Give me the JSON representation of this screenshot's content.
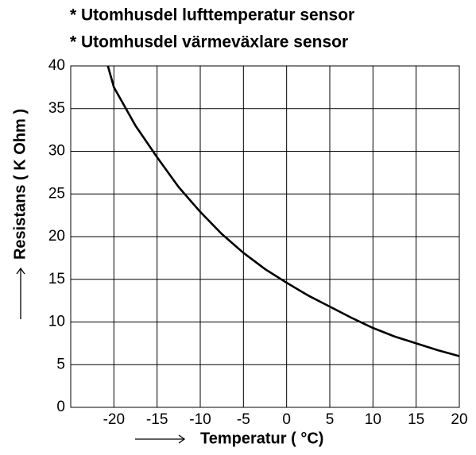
{
  "chart_data": {
    "type": "line",
    "title": "* Utomhusdel lufttemperatur sensor",
    "subtitle": "* Utomhusdel värmeväxlare sensor",
    "x_label": "Temperatur (  °C)",
    "y_label": "Resistans ( K Ohm )",
    "x": [
      -20.7,
      -20,
      -17.5,
      -15,
      -12.5,
      -10,
      -7.5,
      -5,
      -2.5,
      0,
      2.5,
      5,
      7.5,
      10,
      12.5,
      15,
      17.5,
      20
    ],
    "series": [
      {
        "name": "Resistans",
        "color": "#000000",
        "values": [
          40,
          37.5,
          33,
          29.3,
          25.8,
          22.9,
          20.3,
          18.1,
          16.2,
          14.6,
          13.1,
          11.8,
          10.5,
          9.3,
          8.3,
          7.5,
          6.7,
          6.0
        ]
      }
    ],
    "xlim": [
      -25,
      20
    ],
    "xticks": [
      -20,
      -15,
      -10,
      -5,
      0,
      5,
      10,
      15,
      20
    ],
    "ylim": [
      0,
      40
    ],
    "yticks": [
      0,
      5,
      10,
      15,
      20,
      25,
      30,
      35,
      40
    ],
    "grid": true
  }
}
